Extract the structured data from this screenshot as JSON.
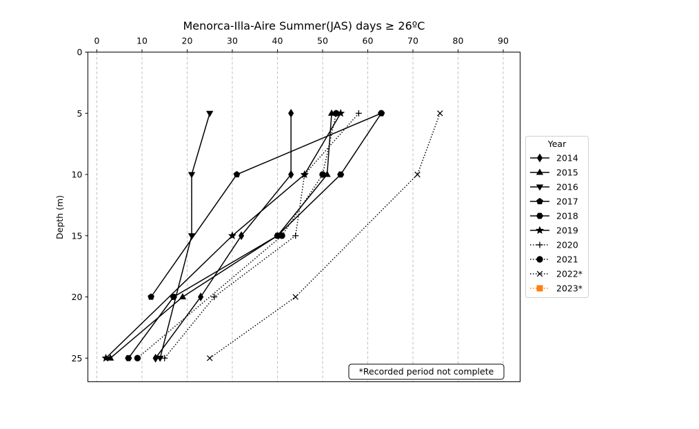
{
  "chart_data": {
    "type": "line",
    "title": "Menorca-Illa-Aire Summer(JAS) days ≥ 26ºC",
    "xlabel": "",
    "ylabel": "Depth (m)",
    "xlim": [
      -2,
      94
    ],
    "ylim": [
      27,
      0
    ],
    "x_axis_position": "top",
    "y_inverted": true,
    "grid": "vertical dashed",
    "x_ticks": [
      0,
      10,
      20,
      30,
      40,
      50,
      60,
      70,
      80,
      90
    ],
    "y_ticks": [
      0,
      5,
      10,
      15,
      20,
      25
    ],
    "legend": {
      "title": "Year",
      "placement": "right"
    },
    "annotation": "*Recorded period not complete",
    "series": [
      {
        "name": "2014",
        "marker": "diamond",
        "style": "solid",
        "color": "#000000",
        "points": [
          [
            43,
            5
          ],
          [
            43,
            10
          ],
          [
            32,
            15
          ],
          [
            23,
            20
          ],
          [
            13,
            25
          ]
        ]
      },
      {
        "name": "2015",
        "marker": "triangle-up",
        "style": "solid",
        "color": "#000000",
        "points": [
          [
            52,
            5
          ],
          [
            51,
            10
          ],
          [
            40,
            15
          ],
          [
            19,
            20
          ],
          [
            3,
            25
          ]
        ]
      },
      {
        "name": "2016",
        "marker": "triangle-down",
        "style": "solid",
        "color": "#000000",
        "points": [
          [
            25,
            5
          ],
          [
            21,
            10
          ],
          [
            21,
            15
          ],
          [
            14,
            25
          ]
        ]
      },
      {
        "name": "2017",
        "marker": "pentagon",
        "style": "solid",
        "color": "#000000",
        "points": [
          [
            63,
            5
          ],
          [
            31,
            10
          ],
          [
            12,
            20
          ]
        ]
      },
      {
        "name": "2018",
        "marker": "hexagon",
        "style": "solid",
        "color": "#000000",
        "points": [
          [
            63,
            5
          ],
          [
            54,
            10
          ],
          [
            40,
            15
          ],
          [
            17,
            20
          ],
          [
            7,
            25
          ]
        ]
      },
      {
        "name": "2019",
        "marker": "star",
        "style": "solid",
        "color": "#000000",
        "points": [
          [
            54,
            5
          ],
          [
            46,
            10
          ],
          [
            30,
            15
          ],
          [
            2,
            25
          ]
        ]
      },
      {
        "name": "2020",
        "marker": "plus",
        "style": "dotted",
        "color": "#000000",
        "points": [
          [
            58,
            5
          ],
          [
            46,
            10
          ],
          [
            44,
            15
          ],
          [
            26,
            20
          ],
          [
            15,
            25
          ]
        ]
      },
      {
        "name": "2021",
        "marker": "circle",
        "style": "dotted",
        "color": "#000000",
        "points": [
          [
            53,
            5
          ],
          [
            50,
            10
          ],
          [
            41,
            15
          ],
          [
            9,
            25
          ]
        ]
      },
      {
        "name": "2022*",
        "marker": "x",
        "style": "dotted",
        "color": "#000000",
        "points": [
          [
            76,
            5
          ],
          [
            71,
            10
          ],
          [
            44,
            20
          ],
          [
            25,
            25
          ]
        ]
      },
      {
        "name": "2023*",
        "marker": "square",
        "style": "dotted",
        "color": "#ff7f0e",
        "points": []
      }
    ]
  }
}
